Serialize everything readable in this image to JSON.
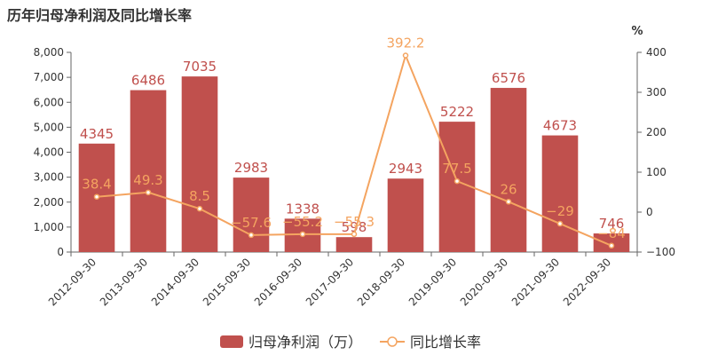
{
  "chart_data": {
    "type": "bar",
    "title": "历年归母净利润及同比增长率",
    "categories": [
      "2012-09-30",
      "2013-09-30",
      "2014-09-30",
      "2015-09-30",
      "2016-09-30",
      "2017-09-30",
      "2018-09-30",
      "2019-09-30",
      "2020-09-30",
      "2021-09-30",
      "2022-09-30"
    ],
    "series": [
      {
        "name": "归母净利润（万）",
        "type": "bar",
        "axis": "left",
        "color": "#c0504d",
        "values": [
          4345,
          6486,
          7035,
          2983,
          1338,
          598,
          2943,
          5222,
          6576,
          4673,
          746
        ],
        "labels": [
          "4345",
          "6486",
          "7035",
          "2983",
          "1338",
          "598",
          "2943",
          "5222",
          "6576",
          "4673",
          "746"
        ]
      },
      {
        "name": "同比增长率",
        "type": "line",
        "axis": "right",
        "color": "#f4a460",
        "values": [
          38.4,
          49.3,
          8.5,
          -57.6,
          -55.2,
          -55.3,
          392.2,
          77.5,
          26,
          -29,
          -84
        ],
        "labels": [
          "38.4",
          "49.3",
          "8.5",
          "−57.6",
          "−55.2",
          "−55.3",
          "392.2",
          "77.5",
          "26",
          "−29",
          "−84"
        ]
      }
    ],
    "y_left": {
      "ylim": [
        0,
        8000
      ],
      "ticks": [
        0,
        1000,
        2000,
        3000,
        4000,
        5000,
        6000,
        7000,
        8000
      ],
      "tick_labels": [
        "0",
        "1,000",
        "2,000",
        "3,000",
        "4,000",
        "5,000",
        "6,000",
        "7,000",
        "8,000"
      ]
    },
    "y_right": {
      "label": "%",
      "ylim": [
        -100,
        400
      ],
      "ticks": [
        -100,
        0,
        100,
        200,
        300,
        400
      ],
      "tick_labels": [
        "−100",
        "0",
        "100",
        "200",
        "300",
        "400"
      ]
    },
    "grid": false,
    "legend_position": "bottom-center"
  }
}
